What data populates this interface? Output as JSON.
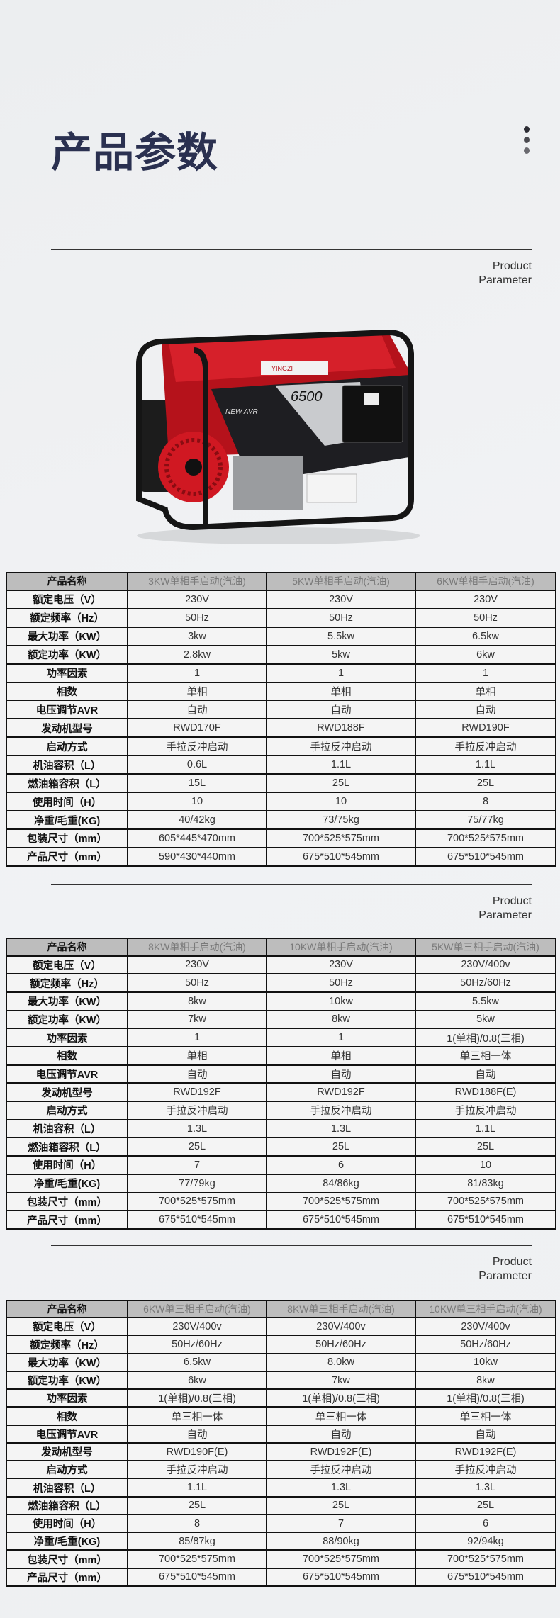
{
  "header": {
    "title": "产品参数",
    "subtitle_line1": "Product",
    "subtitle_line2": "Parameter"
  },
  "colors": {
    "title": "#2a3050",
    "header_row_bg": "#bdbdbd",
    "border": "#111111",
    "generator_red": "#c8141c"
  },
  "product_image": {
    "brand": "YINGZI",
    "model": "6500",
    "badge": "NEW AVR"
  },
  "row_labels": [
    "产品名称",
    "额定电压（V）",
    "额定频率（Hz）",
    "最大功率（KW）",
    "额定功率（KW）",
    "功率因素",
    "相数",
    "电压调节AVR",
    "发动机型号",
    "启动方式",
    "机油容积（L）",
    "燃油箱容积（L）",
    "使用时间（H）",
    "净重/毛重(KG)",
    "包装尺寸（mm）",
    "产品尺寸（mm）"
  ],
  "tables": [
    {
      "subtitle_line1": "Product",
      "subtitle_line2": "Parameter",
      "columns": [
        [
          "3KW单相手启动(汽油)",
          "230V",
          "50Hz",
          "3kw",
          "2.8kw",
          "1",
          "单相",
          "自动",
          "RWD170F",
          "手拉反冲启动",
          "0.6L",
          "15L",
          "10",
          "40/42kg",
          "605*445*470mm",
          "590*430*440mm"
        ],
        [
          "5KW单相手启动(汽油)",
          "230V",
          "50Hz",
          "5.5kw",
          "5kw",
          "1",
          "单相",
          "自动",
          "RWD188F",
          "手拉反冲启动",
          "1.1L",
          "25L",
          "10",
          "73/75kg",
          "700*525*575mm",
          "675*510*545mm"
        ],
        [
          "6KW单相手启动(汽油)",
          "230V",
          "50Hz",
          "6.5kw",
          "6kw",
          "1",
          "单相",
          "自动",
          "RWD190F",
          "手拉反冲启动",
          "1.1L",
          "25L",
          "8",
          "75/77kg",
          "700*525*575mm",
          "675*510*545mm"
        ]
      ]
    },
    {
      "subtitle_line1": "Product",
      "subtitle_line2": "Parameter",
      "columns": [
        [
          "8KW单相手启动(汽油)",
          "230V",
          "50Hz",
          "8kw",
          "7kw",
          "1",
          "单相",
          "自动",
          "RWD192F",
          "手拉反冲启动",
          "1.3L",
          "25L",
          "7",
          "77/79kg",
          "700*525*575mm",
          "675*510*545mm"
        ],
        [
          "10KW单相手启动(汽油)",
          "230V",
          "50Hz",
          "10kw",
          "8kw",
          "1",
          "单相",
          "自动",
          "RWD192F",
          "手拉反冲启动",
          "1.3L",
          "25L",
          "6",
          "84/86kg",
          "700*525*575mm",
          "675*510*545mm"
        ],
        [
          "5KW单三相手启动(汽油)",
          "230V/400v",
          "50Hz/60Hz",
          "5.5kw",
          "5kw",
          "1(单相)/0.8(三相)",
          "单三相一体",
          "自动",
          "RWD188F(E)",
          "手拉反冲启动",
          "1.1L",
          "25L",
          "10",
          "81/83kg",
          "700*525*575mm",
          "675*510*545mm"
        ]
      ]
    },
    {
      "subtitle_line1": "Product",
      "subtitle_line2": "Parameter",
      "columns": [
        [
          "6KW单三相手启动(汽油)",
          "230V/400v",
          "50Hz/60Hz",
          "6.5kw",
          "6kw",
          "1(单相)/0.8(三相)",
          "单三相一体",
          "自动",
          "RWD190F(E)",
          "手拉反冲启动",
          "1.1L",
          "25L",
          "8",
          "85/87kg",
          "700*525*575mm",
          "675*510*545mm"
        ],
        [
          "8KW单三相手启动(汽油)",
          "230V/400v",
          "50Hz/60Hz",
          "8.0kw",
          "7kw",
          "1(单相)/0.8(三相)",
          "单三相一体",
          "自动",
          "RWD192F(E)",
          "手拉反冲启动",
          "1.3L",
          "25L",
          "7",
          "88/90kg",
          "700*525*575mm",
          "675*510*545mm"
        ],
        [
          "10KW单三相手启动(汽油)",
          "230V/400v",
          "50Hz/60Hz",
          "10kw",
          "8kw",
          "1(单相)/0.8(三相)",
          "单三相一体",
          "自动",
          "RWD192F(E)",
          "手拉反冲启动",
          "1.3L",
          "25L",
          "6",
          "92/94kg",
          "700*525*575mm",
          "675*510*545mm"
        ]
      ]
    }
  ]
}
